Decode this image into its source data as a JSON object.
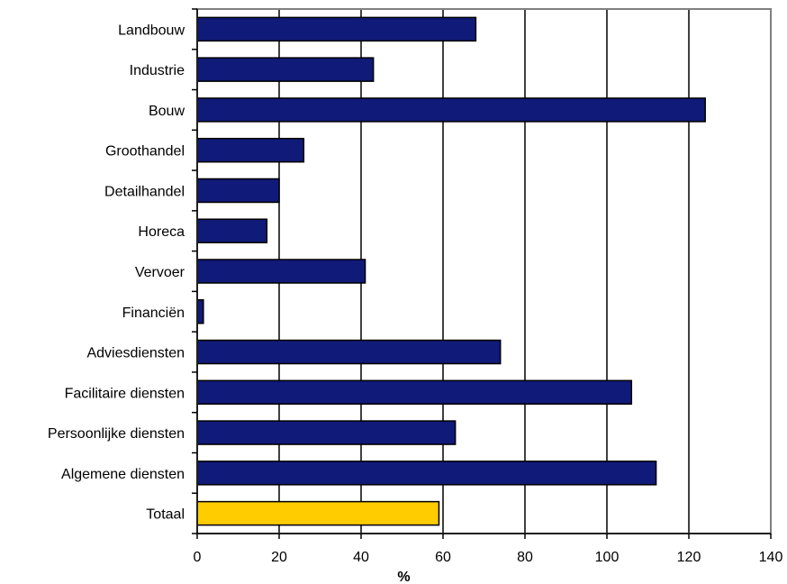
{
  "chart_data": {
    "type": "bar",
    "orientation": "horizontal",
    "categories": [
      "Landbouw",
      "Industrie",
      "Bouw",
      "Groothandel",
      "Detailhandel",
      "Horeca",
      "Vervoer",
      "Financiën",
      "Adviesdiensten",
      "Facilitaire diensten",
      "Persoonlijke diensten",
      "Algemene diensten",
      "Totaal"
    ],
    "values": [
      68,
      43,
      124,
      26,
      20,
      17,
      41,
      1.5,
      74,
      106,
      63,
      112,
      59
    ],
    "bar_colors": [
      "#101a78",
      "#101a78",
      "#101a78",
      "#101a78",
      "#101a78",
      "#101a78",
      "#101a78",
      "#101a78",
      "#101a78",
      "#101a78",
      "#101a78",
      "#101a78",
      "#ffcc00"
    ],
    "highlight_color": "#ffcc00",
    "series_color": "#101a78",
    "xlabel": "%",
    "ylabel": "",
    "title": "",
    "xlim": [
      0,
      140
    ],
    "x_ticks": [
      0,
      20,
      40,
      60,
      80,
      100,
      120,
      140
    ],
    "grid": "vertical",
    "legend": "none"
  }
}
